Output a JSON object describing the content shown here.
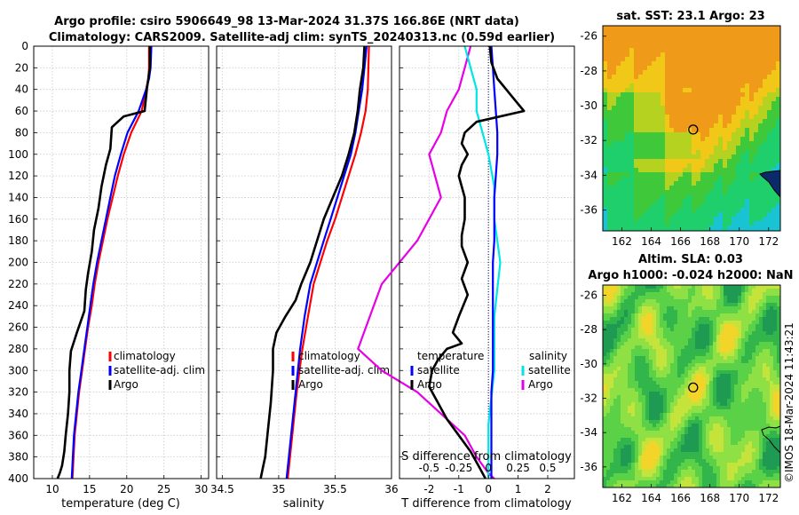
{
  "figure": {
    "title_line1": "Argo profile: csiro 5906649_98 13-Mar-2024 31.37S 166.86E (NRT data)",
    "title_line2": "Climatology: CARS2009. Satellite-adj clim: synTS_20240313.nc (0.59d earlier)",
    "credit": "©IMOS 18-Mar-2024 11:43:21",
    "colors": {
      "climatology": "#ff0000",
      "satellite": "#0000ff",
      "argo": "#000000",
      "t_sat": "#0000ff",
      "s_sat": "#00e5e5",
      "s_argo": "#e600e6"
    }
  },
  "chart_data": [
    {
      "type": "line",
      "id": "temperature",
      "xlabel": "temperature (deg C)",
      "ylabel": "",
      "xlim": [
        7.5,
        31
      ],
      "ylim": [
        400,
        0
      ],
      "xticks": [
        10,
        15,
        20,
        25,
        30
      ],
      "yticks": [
        0,
        20,
        40,
        60,
        80,
        100,
        120,
        140,
        160,
        180,
        200,
        220,
        240,
        260,
        280,
        300,
        320,
        340,
        360,
        380,
        400
      ],
      "grid": true,
      "legend": {
        "position": "center-right",
        "entries": [
          "climatology",
          "satellite-adj. clim",
          "Argo"
        ]
      },
      "series": [
        {
          "name": "climatology",
          "color": "#ff0000",
          "x": [
            23.0,
            23.0,
            22.9,
            22.6,
            22.0,
            20.6,
            19.6,
            18.8,
            18.1,
            17.4,
            16.8,
            16.2,
            15.7,
            15.3,
            14.8,
            14.4,
            14.0,
            13.6,
            13.3,
            13.0,
            12.7
          ],
          "y": [
            0,
            20,
            30,
            40,
            60,
            80,
            100,
            120,
            140,
            160,
            180,
            200,
            220,
            240,
            260,
            280,
            300,
            320,
            340,
            360,
            400
          ]
        },
        {
          "name": "satellite-adj. clim",
          "color": "#0000ff",
          "x": [
            23.3,
            23.2,
            23.0,
            22.6,
            21.6,
            20.1,
            19.2,
            18.4,
            17.8,
            17.2,
            16.6,
            16.0,
            15.5,
            15.1,
            14.7,
            14.3,
            13.9,
            13.5,
            13.2,
            12.9,
            12.6
          ],
          "y": [
            0,
            20,
            30,
            40,
            60,
            80,
            100,
            120,
            140,
            160,
            180,
            200,
            220,
            240,
            260,
            280,
            300,
            320,
            340,
            360,
            400
          ]
        },
        {
          "name": "Argo",
          "color": "#000000",
          "x": [
            23.1,
            23.1,
            22.9,
            22.7,
            22.4,
            19.6,
            18.0,
            17.8,
            17.2,
            16.6,
            16.2,
            15.6,
            15.3,
            14.8,
            14.5,
            14.3,
            13.3,
            12.5,
            12.3,
            12.3,
            12.1,
            11.8,
            11.6,
            11.3,
            11.0,
            10.7
          ],
          "y": [
            0,
            20,
            30,
            40,
            60,
            65,
            75,
            95,
            110,
            130,
            150,
            170,
            190,
            210,
            225,
            245,
            265,
            282,
            300,
            320,
            340,
            360,
            375,
            388,
            395,
            400
          ]
        }
      ]
    },
    {
      "type": "line",
      "id": "salinity",
      "xlabel": "salinity",
      "ylabel": "",
      "xlim": [
        34.45,
        36.0
      ],
      "ylim": [
        400,
        0
      ],
      "xticks": [
        34.5,
        35,
        35.5,
        36
      ],
      "xtick_labels": [
        "34.5",
        "35",
        "35.5",
        "36"
      ],
      "grid": true,
      "legend": {
        "position": "center-right",
        "entries": [
          "climatology",
          "satellite-adj. clim",
          "Argo"
        ]
      },
      "series": [
        {
          "name": "climatology",
          "color": "#ff0000",
          "x": [
            35.8,
            35.79,
            35.77,
            35.73,
            35.68,
            35.62,
            35.56,
            35.5,
            35.43,
            35.37,
            35.31,
            35.26,
            35.21,
            35.16,
            35.12,
            35.08
          ],
          "y": [
            0,
            40,
            60,
            80,
            100,
            120,
            140,
            160,
            180,
            200,
            220,
            250,
            280,
            320,
            360,
            400
          ]
        },
        {
          "name": "satellite-adj. clim",
          "color": "#0000ff",
          "x": [
            35.78,
            35.74,
            35.71,
            35.68,
            35.64,
            35.58,
            35.52,
            35.46,
            35.4,
            35.34,
            35.28,
            35.23,
            35.19,
            35.15,
            35.11,
            35.07
          ],
          "y": [
            0,
            40,
            60,
            80,
            100,
            120,
            140,
            160,
            180,
            200,
            220,
            250,
            280,
            320,
            360,
            400
          ]
        },
        {
          "name": "Argo",
          "color": "#000000",
          "x": [
            35.76,
            35.75,
            35.72,
            35.7,
            35.67,
            35.62,
            35.56,
            35.48,
            35.4,
            35.34,
            35.28,
            35.2,
            35.15,
            35.06,
            34.98,
            34.95,
            34.95,
            34.93,
            34.9,
            34.88,
            34.86,
            34.84
          ],
          "y": [
            0,
            20,
            40,
            60,
            80,
            100,
            120,
            140,
            160,
            180,
            200,
            220,
            235,
            250,
            265,
            280,
            300,
            330,
            360,
            380,
            390,
            400
          ]
        }
      ]
    },
    {
      "type": "line",
      "id": "difference",
      "xlabel": "T difference from climatology",
      "xlabel_top": "S difference from climatology",
      "xlim": [
        -3.0,
        2.9
      ],
      "ylim": [
        400,
        0
      ],
      "xticks": [
        -2,
        -1,
        0,
        1,
        2
      ],
      "top_ticks": [
        -0.5,
        -0.25,
        0,
        0.25,
        0.5
      ],
      "top_tick_labels": [
        "-0.5",
        "-0.25",
        "0",
        "0.25",
        "0.5"
      ],
      "top_tick_scale": 4,
      "grid": true,
      "legend": {
        "position": "center",
        "temperature_title": "temperature",
        "salinity_title": "salinity",
        "temperature_entries": [
          "satellite",
          "Argo"
        ],
        "salinity_entries": [
          "satellite",
          "Argo"
        ]
      },
      "series": [
        {
          "name": "temperature satellite",
          "color": "#0000ff",
          "x": [
            0.1,
            0.15,
            0.2,
            0.25,
            0.3,
            0.3,
            0.25,
            0.2,
            0.2,
            0.2,
            0.15,
            0.15,
            0.15,
            0.15,
            0.1,
            0.1,
            0.1,
            0.1
          ],
          "y": [
            0,
            20,
            40,
            60,
            80,
            100,
            120,
            140,
            160,
            180,
            200,
            240,
            280,
            300,
            320,
            340,
            360,
            400
          ]
        },
        {
          "name": "temperature Argo",
          "color": "#000000",
          "x": [
            0.05,
            0.1,
            0.3,
            0.9,
            1.2,
            -0.4,
            -0.8,
            -0.9,
            -0.7,
            -0.9,
            -1.0,
            -0.8,
            -0.8,
            -0.9,
            -0.9,
            -0.7,
            -0.9,
            -0.7,
            -1.0,
            -1.2,
            -0.9,
            -1.4,
            -1.7,
            -1.9,
            -2.0,
            -1.7,
            -1.4,
            -1.0,
            -0.6,
            -0.3,
            -0.1
          ],
          "y": [
            0,
            15,
            30,
            50,
            60,
            70,
            80,
            90,
            100,
            110,
            120,
            140,
            160,
            175,
            185,
            200,
            215,
            230,
            250,
            265,
            275,
            280,
            290,
            300,
            315,
            330,
            345,
            360,
            375,
            390,
            400
          ]
        },
        {
          "name": "salinity satellite",
          "color": "#00e5e5",
          "x": [
            -0.2,
            -0.15,
            -0.1,
            -0.1,
            -0.05,
            0.0,
            0.05,
            0.05,
            0.1,
            0.05,
            0.05,
            0.0,
            0.0
          ],
          "y": [
            0,
            20,
            40,
            60,
            80,
            100,
            130,
            160,
            200,
            250,
            300,
            350,
            400
          ]
        },
        {
          "name": "salinity Argo",
          "color": "#e600e6",
          "x": [
            -0.15,
            -0.2,
            -0.25,
            -0.35,
            -0.4,
            -0.5,
            -0.4,
            -0.6,
            -0.9,
            -1.0,
            -1.1,
            -0.9,
            -0.6,
            -0.4,
            -0.2,
            -0.1,
            0.0,
            0.05
          ],
          "y": [
            0,
            20,
            40,
            60,
            80,
            100,
            140,
            180,
            220,
            250,
            280,
            300,
            320,
            340,
            360,
            380,
            395,
            400
          ]
        }
      ]
    },
    {
      "type": "heatmap",
      "id": "sst-map",
      "title": "sat. SST: 23.1 Argo: 23",
      "xticks": [
        162,
        164,
        166,
        168,
        170,
        172
      ],
      "yticks": [
        -26,
        -28,
        -30,
        -32,
        -34,
        -36
      ],
      "xlim": [
        160.7,
        172.8
      ],
      "ylim": [
        -37.2,
        -25.4
      ],
      "marker": {
        "lon": 166.86,
        "lat": -31.37
      }
    },
    {
      "type": "heatmap",
      "id": "sla-map",
      "title_line1": "Altim. SLA: 0.03",
      "title_line2": "Argo h1000: -0.024 h2000: NaN",
      "xticks": [
        162,
        164,
        166,
        168,
        170,
        172
      ],
      "yticks": [
        -26,
        -28,
        -30,
        -32,
        -34,
        -36
      ],
      "xlim": [
        160.7,
        172.8
      ],
      "ylim": [
        -37.2,
        -25.4
      ],
      "marker": {
        "lon": 166.86,
        "lat": -31.37
      }
    }
  ]
}
